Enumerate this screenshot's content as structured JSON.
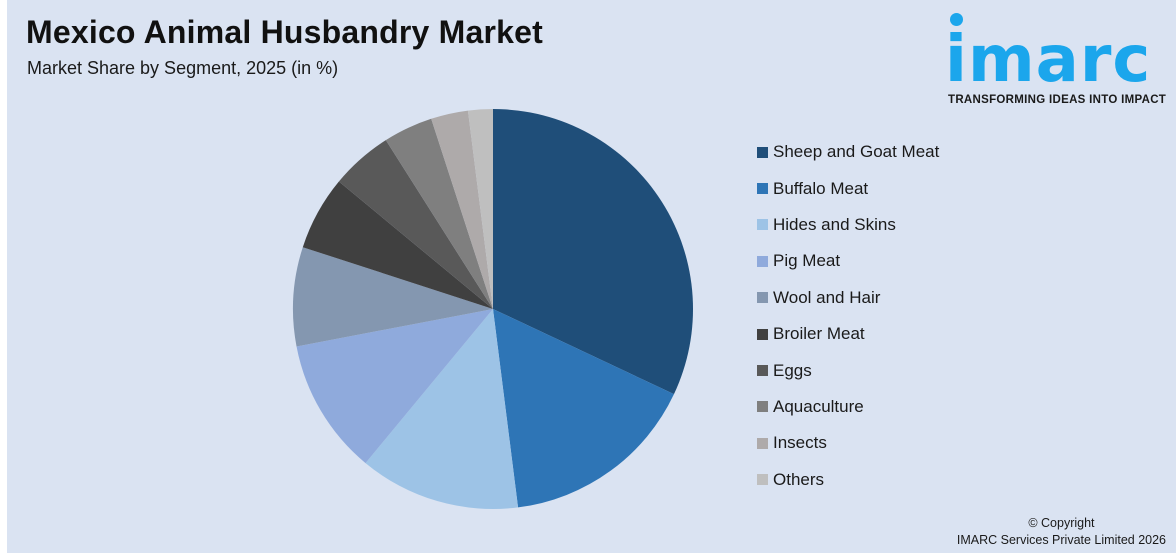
{
  "header": {
    "title": "Mexico Animal Husbandry Market",
    "subtitle": "Market Share by Segment, 2025 (in %)"
  },
  "logo": {
    "wordmark": "imarc",
    "tagline": "TRANSFORMING IDEAS INTO IMPACT",
    "color": "#1ba6ec"
  },
  "footer": {
    "line1": "© Copyright",
    "line2": "IMARC Services Private Limited 2026"
  },
  "chart_data": {
    "type": "pie",
    "title": "Mexico Animal Husbandry Market",
    "subtitle": "Market Share by Segment, 2025 (in %)",
    "start_angle_deg": 0,
    "direction": "clockwise",
    "legend_position": "right",
    "categories": [
      "Sheep and Goat Meat",
      "Buffalo Meat",
      "Hides and Skins",
      "Pig Meat",
      "Wool and Hair",
      "Broiler Meat",
      "Eggs",
      "Aquaculture",
      "Insects",
      "Others"
    ],
    "values": [
      32,
      16,
      13,
      11,
      8,
      6,
      5,
      4,
      3,
      2
    ],
    "colors": [
      "#1f4e79",
      "#2e75b6",
      "#9dc3e6",
      "#8faadc",
      "#8497b0",
      "#404040",
      "#595959",
      "#7f7f7f",
      "#aeaaaa",
      "#bfbfbf"
    ]
  },
  "legend": {
    "items": [
      {
        "label": "Sheep and Goat Meat",
        "color": "#1f4e79"
      },
      {
        "label": "Buffalo Meat",
        "color": "#2e75b6"
      },
      {
        "label": "Hides and Skins",
        "color": "#9dc3e6"
      },
      {
        "label": "Pig Meat",
        "color": "#8faadc"
      },
      {
        "label": "Wool and Hair",
        "color": "#8497b0"
      },
      {
        "label": "Broiler Meat",
        "color": "#404040"
      },
      {
        "label": "Eggs",
        "color": "#595959"
      },
      {
        "label": "Aquaculture",
        "color": "#7f7f7f"
      },
      {
        "label": "Insects",
        "color": "#aeaaaa"
      },
      {
        "label": "Others",
        "color": "#bfbfbf"
      }
    ]
  }
}
